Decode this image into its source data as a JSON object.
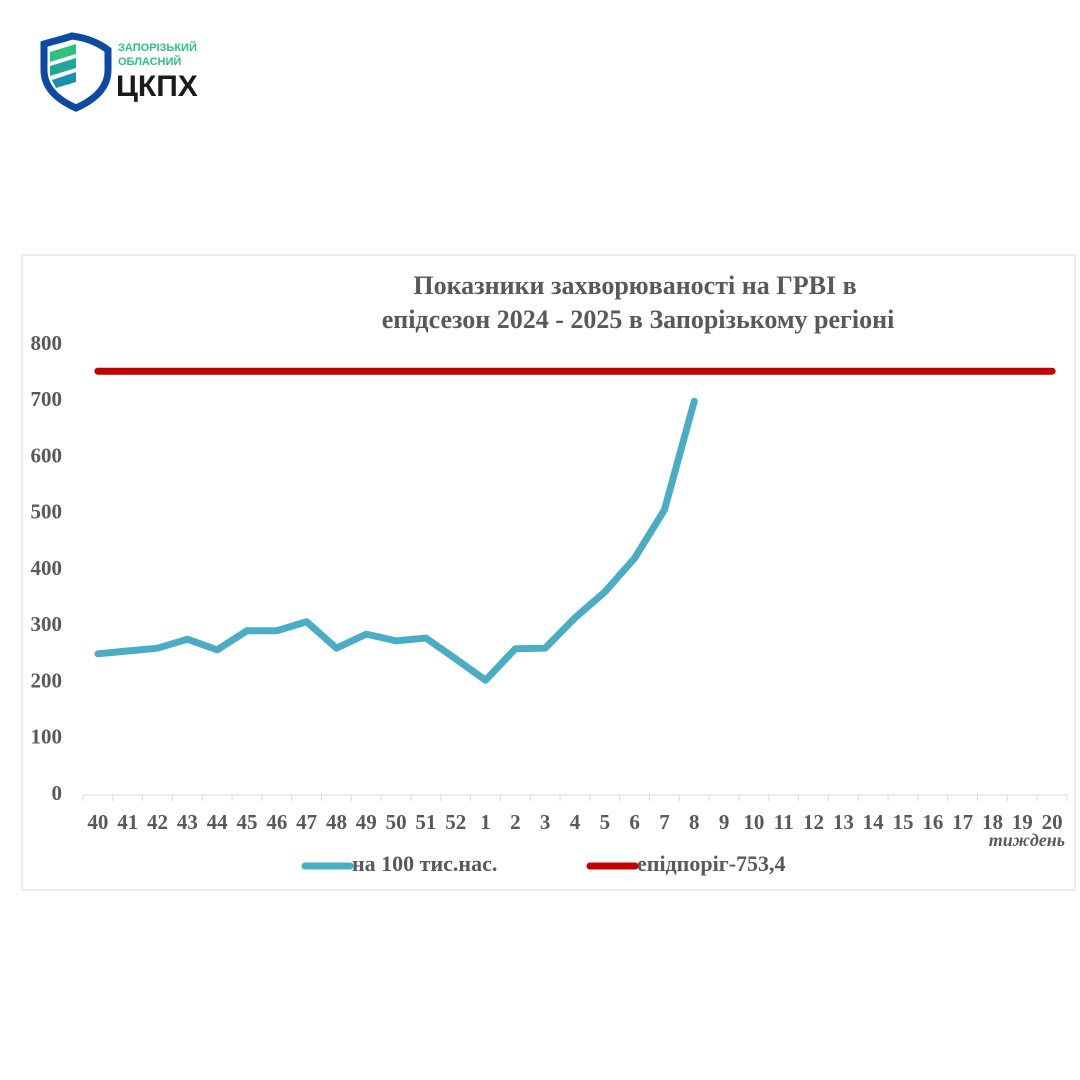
{
  "logo": {
    "line1": "ЗАПОРІЗЬКИЙ",
    "line2": "ОБЛАСНИЙ",
    "name": "ЦКПХ"
  },
  "chart_data": {
    "type": "line",
    "title": [
      "Показники захворюваності на ГРВІ в",
      "епідсезон 2024 - 2025 в Запорізькому регіоні"
    ],
    "x_label": "тиждень",
    "categories": [
      "40",
      "41",
      "42",
      "43",
      "44",
      "45",
      "46",
      "47",
      "48",
      "49",
      "50",
      "51",
      "52",
      "1",
      "2",
      "3",
      "4",
      "5",
      "6",
      "7",
      "8",
      "9",
      "10",
      "11",
      "12",
      "13",
      "14",
      "15",
      "16",
      "17",
      "18",
      "19",
      "20"
    ],
    "series": [
      {
        "name": "на 100 тис.нас.",
        "color": "#4bacc6",
        "values": [
          251,
          256,
          261,
          277,
          258,
          292,
          292,
          308,
          261,
          286,
          274,
          279,
          242,
          204,
          260,
          261,
          315,
          361,
          421,
          507,
          700,
          null,
          null,
          null,
          null,
          null,
          null,
          null,
          null,
          null,
          null,
          null,
          null
        ]
      },
      {
        "name": "епідпоріг-753,4",
        "color": "#c00000",
        "values": [
          753.4,
          753.4,
          753.4,
          753.4,
          753.4,
          753.4,
          753.4,
          753.4,
          753.4,
          753.4,
          753.4,
          753.4,
          753.4,
          753.4,
          753.4,
          753.4,
          753.4,
          753.4,
          753.4,
          753.4,
          753.4,
          753.4,
          753.4,
          753.4,
          753.4,
          753.4,
          753.4,
          753.4,
          753.4,
          753.4,
          753.4,
          753.4,
          753.4
        ]
      }
    ],
    "ylim": [
      0,
      800
    ],
    "yticks": [
      0,
      100,
      200,
      300,
      400,
      500,
      600,
      700,
      800
    ],
    "grid": false
  }
}
